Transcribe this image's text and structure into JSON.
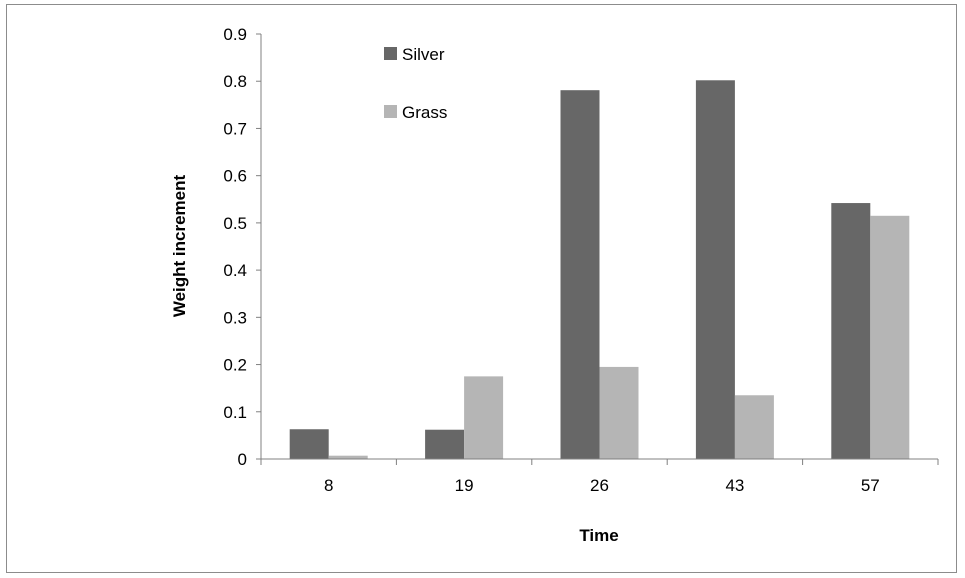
{
  "chart_data": {
    "type": "bar",
    "categories": [
      "8",
      "19",
      "26",
      "43",
      "57"
    ],
    "series": [
      {
        "name": "Silver",
        "values": [
          0.063,
          0.062,
          0.781,
          0.802,
          0.542
        ],
        "color": "#676767"
      },
      {
        "name": "Grass",
        "values": [
          0.007,
          0.175,
          0.195,
          0.135,
          0.515
        ],
        "color": "#b5b5b5"
      }
    ],
    "title": "",
    "xlabel": "Time",
    "ylabel": "Weight increment",
    "ylim": [
      0,
      0.9
    ],
    "yticks": [
      "0",
      "0.1",
      "0.2",
      "0.3",
      "0.4",
      "0.5",
      "0.6",
      "0.7",
      "0.8",
      "0.9"
    ],
    "grid": false,
    "legend_position": "top-left inside"
  }
}
